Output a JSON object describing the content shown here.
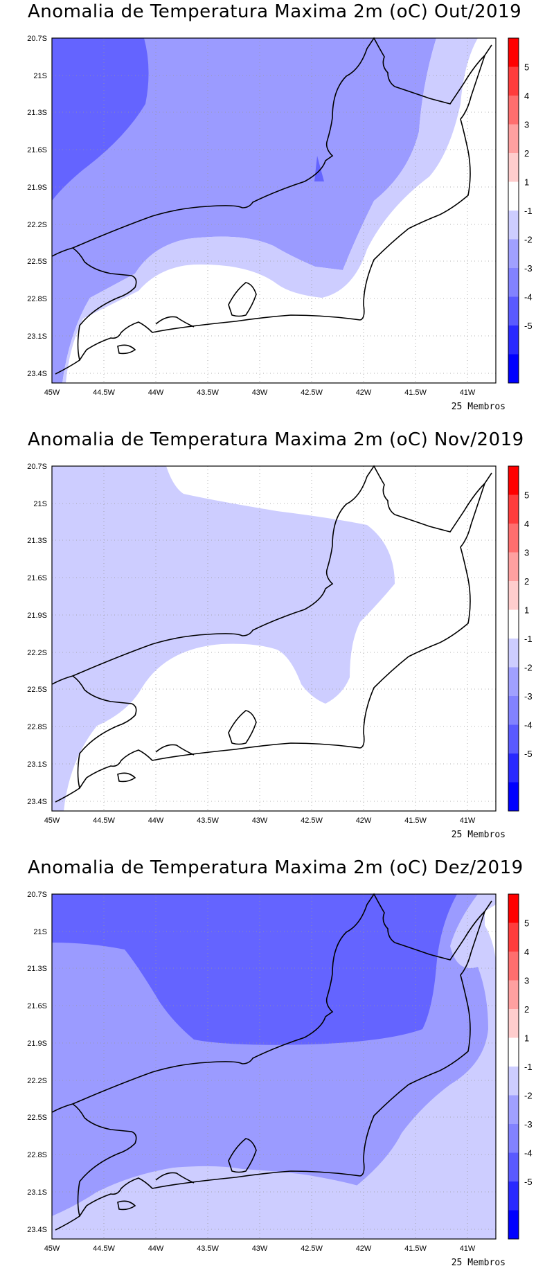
{
  "panels": [
    {
      "title": "Anomalia de Temperatura Maxima 2m (oC) Out/2019",
      "members": "25 Membros"
    },
    {
      "title": "Anomalia de Temperatura Maxima 2m (oC) Nov/2019",
      "members": "25 Membros"
    },
    {
      "title": "Anomalia de Temperatura Maxima 2m (oC) Dez/2019",
      "members": "25 Membros"
    }
  ],
  "lat_labels": [
    "20.7S",
    "21S",
    "21.3S",
    "21.6S",
    "21.9S",
    "22.2S",
    "22.5S",
    "22.8S",
    "23.1S",
    "23.4S"
  ],
  "lon_labels": [
    "45W",
    "44.5W",
    "44W",
    "43.5W",
    "43W",
    "42.5W",
    "42W",
    "41.5W",
    "41W"
  ],
  "legend": {
    "labels": [
      "5",
      "4",
      "3",
      "2",
      "1",
      "-1",
      "-2",
      "-3",
      "-4",
      "-5"
    ],
    "colors": [
      "#ff0000",
      "#ff3c3c",
      "#ff6e6e",
      "#ffa0a0",
      "#ffcdcd",
      "#ffffff",
      "#cdcdff",
      "#a0a0ff",
      "#8282ff",
      "#5a5aff",
      "#2828ff",
      "#0000ff"
    ]
  },
  "shading": {
    "c_neg1_2": "#cdcdff",
    "c_neg2_3": "#9b9bff",
    "c_neg3_4": "#6464ff",
    "c_white": "#ffffff"
  }
}
